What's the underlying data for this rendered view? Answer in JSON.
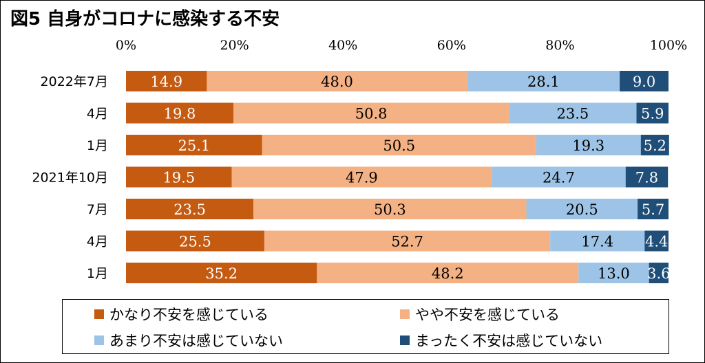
{
  "title": "図5 自身がコロナに感染する不安",
  "chart_data": {
    "type": "bar",
    "orientation": "horizontal",
    "stacked": true,
    "categories": [
      "2022年7月",
      "4月",
      "1月",
      "2021年10月",
      "7月",
      "4月",
      "1月"
    ],
    "x_ticks": [
      "0%",
      "20%",
      "40%",
      "60%",
      "80%",
      "100%"
    ],
    "xlim": [
      0,
      100
    ],
    "grid": false,
    "legend_position": "bottom",
    "series": [
      {
        "name": "かなり不安を感じている",
        "color": "#c55a11",
        "values": [
          14.9,
          19.8,
          25.1,
          19.5,
          23.5,
          25.5,
          35.2
        ]
      },
      {
        "name": "やや不安を感じている",
        "color": "#f4b183",
        "values": [
          48.0,
          50.8,
          50.5,
          47.9,
          50.3,
          52.7,
          48.2
        ]
      },
      {
        "name": "あまり不安は感じていない",
        "color": "#9dc3e6",
        "values": [
          28.1,
          23.5,
          19.3,
          24.7,
          20.5,
          17.4,
          13.0
        ]
      },
      {
        "name": "まったく不安は感じていない",
        "color": "#1f4e79",
        "values": [
          9.0,
          5.9,
          5.2,
          7.8,
          5.7,
          4.4,
          3.6
        ]
      }
    ],
    "label_colors": [
      "#ffffff",
      "#000000",
      "#000000",
      "#ffffff"
    ]
  }
}
